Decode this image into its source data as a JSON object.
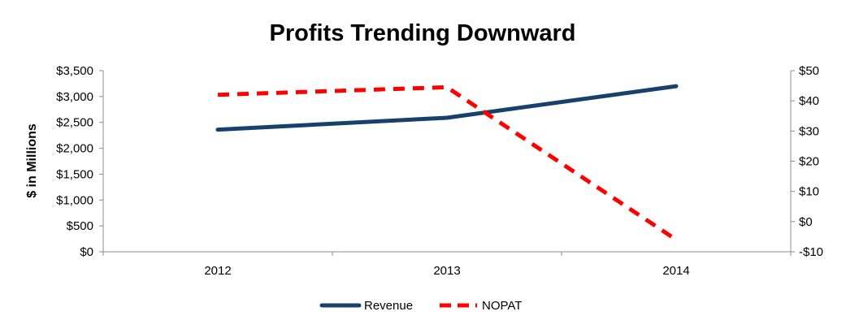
{
  "chart_data": {
    "type": "line",
    "title": "Profits Trending Downward",
    "ylabel": "$ in Millions",
    "y2label": "",
    "categories": [
      "2012",
      "2013",
      "2014"
    ],
    "ylim": [
      0,
      3500
    ],
    "y_ticks": [
      0,
      500,
      1000,
      1500,
      2000,
      2500,
      3000,
      3500
    ],
    "y_tick_labels": [
      "$0",
      "$500",
      "$1,000",
      "$1,500",
      "$2,000",
      "$2,500",
      "$3,000",
      "$3,500"
    ],
    "y2lim": [
      -10,
      50
    ],
    "y2_ticks": [
      -10,
      0,
      10,
      20,
      30,
      40,
      50
    ],
    "y2_tick_labels": [
      "-$10",
      "$0",
      "$10",
      "$20",
      "$30",
      "$40",
      "$50"
    ],
    "grid": false,
    "legend_position": "bottom",
    "series": [
      {
        "name": "Revenue",
        "axis": "left",
        "values": [
          2360,
          2590,
          3200
        ],
        "color": "#17406d",
        "style": "solid"
      },
      {
        "name": "NOPAT",
        "axis": "right",
        "values": [
          42,
          44.5,
          -6
        ],
        "color": "#ff0000",
        "style": "dashed"
      }
    ]
  }
}
